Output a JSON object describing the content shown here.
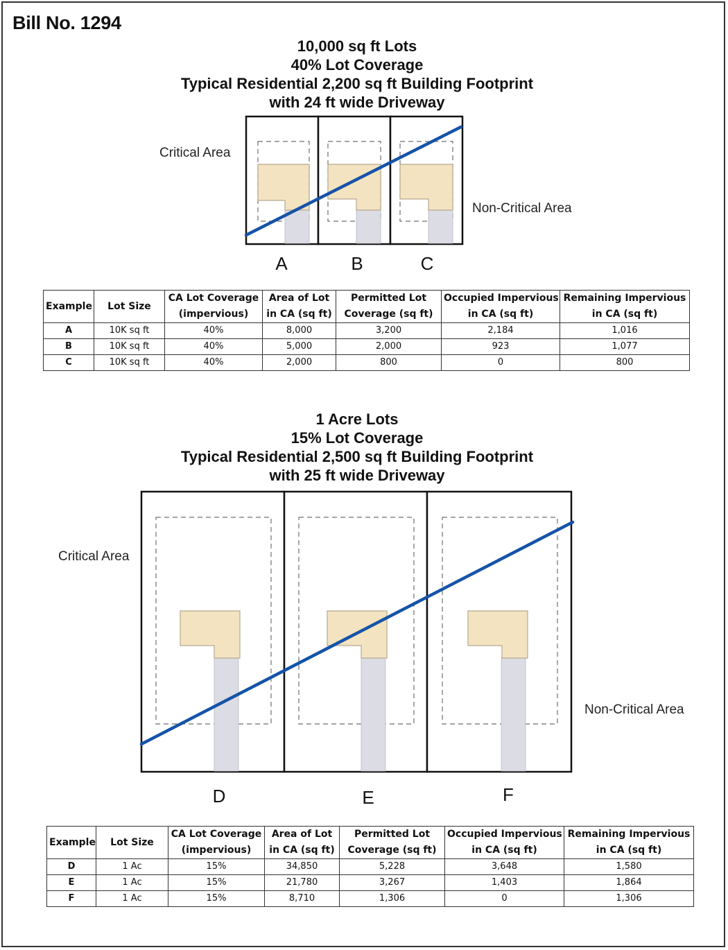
{
  "bill_title": "Bill No. 1294",
  "section1": {
    "heading": [
      "10,000 sq ft Lots",
      "40% Lot Coverage",
      "Typical Residential 2,200 sq ft Building Footprint",
      "with 24 ft wide Driveway"
    ],
    "critical_area_label": "Critical Area",
    "non_critical_area_label": "Non-Critical Area",
    "lot_labels": [
      "A",
      "B",
      "C"
    ],
    "table": {
      "headers": [
        [
          "Example"
        ],
        [
          "Lot Size"
        ],
        [
          "CA Lot Coverage",
          "(impervious)"
        ],
        [
          "Area of Lot",
          "in CA (sq ft)"
        ],
        [
          "Permitted Lot",
          "Coverage (sq ft)"
        ],
        [
          "Occupied Impervious",
          "in CA (sq ft)"
        ],
        [
          "Remaining Impervious",
          "in CA (sq ft)"
        ]
      ],
      "rows": [
        [
          "A",
          "10K sq ft",
          "40%",
          "8,000",
          "3,200",
          "2,184",
          "1,016"
        ],
        [
          "B",
          "10K sq ft",
          "40%",
          "5,000",
          "2,000",
          "923",
          "1,077"
        ],
        [
          "C",
          "10K sq ft",
          "40%",
          "2,000",
          "800",
          "0",
          "800"
        ]
      ]
    }
  },
  "section2": {
    "heading": [
      "1 Acre Lots",
      "15% Lot Coverage",
      "Typical Residential 2,500 sq ft Building Footprint",
      "with 25 ft wide Driveway"
    ],
    "critical_area_label": "Critical Area",
    "non_critical_area_label": "Non-Critical Area",
    "lot_labels": [
      "D",
      "E",
      "F"
    ],
    "table": {
      "headers": [
        [
          "Example"
        ],
        [
          "Lot Size"
        ],
        [
          "CA Lot Coverage",
          "(impervious)"
        ],
        [
          "Area of Lot",
          "in CA (sq ft)"
        ],
        [
          "Permitted Lot",
          "Coverage (sq ft)"
        ],
        [
          "Occupied Impervious",
          "in CA (sq ft)"
        ],
        [
          "Remaining Impervious",
          "in CA (sq ft)"
        ]
      ],
      "rows": [
        [
          "D",
          "1 Ac",
          "15%",
          "34,850",
          "5,228",
          "3,648",
          "1,580"
        ],
        [
          "E",
          "1 Ac",
          "15%",
          "21,780",
          "3,267",
          "1,403",
          "1,864"
        ],
        [
          "F",
          "1 Ac",
          "15%",
          "8,710",
          "1,306",
          "0",
          "1,306"
        ]
      ]
    }
  },
  "colors": {
    "boundary_line": "#1553a8",
    "building": "#f4e3c1",
    "building_outline": "#b5a98f",
    "driveway": "#dcdce4",
    "lot_border": "#111111",
    "setback_dash": "#6e6e6e"
  }
}
